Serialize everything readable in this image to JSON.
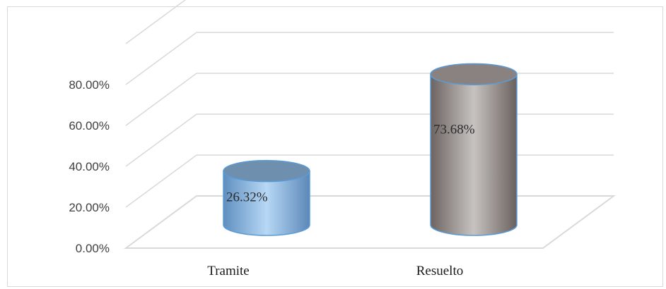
{
  "chart_data": {
    "type": "bar",
    "style": "3d-cylinder",
    "categories": [
      "Tramite",
      "Resuelto"
    ],
    "values": [
      26.32,
      73.68
    ],
    "data_labels": [
      "26.32%",
      "73.68%"
    ],
    "yticks": [
      "0.00%",
      "20.00%",
      "40.00%",
      "60.00%",
      "80.00%"
    ],
    "ylim": [
      0,
      100
    ],
    "grid": true,
    "legend": "none",
    "colors": {
      "bar_fills": [
        "#9cc3e6",
        "#a6a6a6"
      ],
      "bar_outline": "#5b9bd5",
      "bar_tops": [
        "#6f8fae",
        "#8a8280"
      ],
      "grid": "#d9d9d9"
    }
  }
}
